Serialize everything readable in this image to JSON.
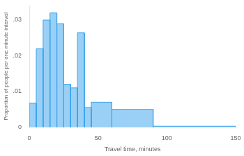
{
  "chart_data": {
    "type": "histogram",
    "bins": [
      0,
      5,
      10,
      15,
      20,
      25,
      30,
      35,
      40,
      45,
      60,
      90,
      150
    ],
    "values": [
      0.0067,
      0.022,
      0.03,
      0.032,
      0.029,
      0.012,
      0.011,
      0.0265,
      0.0055,
      0.007,
      0.005,
      0.00025
    ],
    "xlabel": "Travel time, minutes",
    "ylabel": "Proportion of people per one minute interval",
    "xlim": [
      0,
      150
    ],
    "ylim": [
      0,
      0.034
    ],
    "xticks": [
      0,
      50,
      100,
      150
    ],
    "yticks": [
      0,
      {
        "value": 0.01,
        "label": ".01"
      },
      {
        "value": 0.02,
        "label": ".02"
      },
      {
        "value": 0.03,
        "label": ".03"
      }
    ],
    "grid": false
  }
}
